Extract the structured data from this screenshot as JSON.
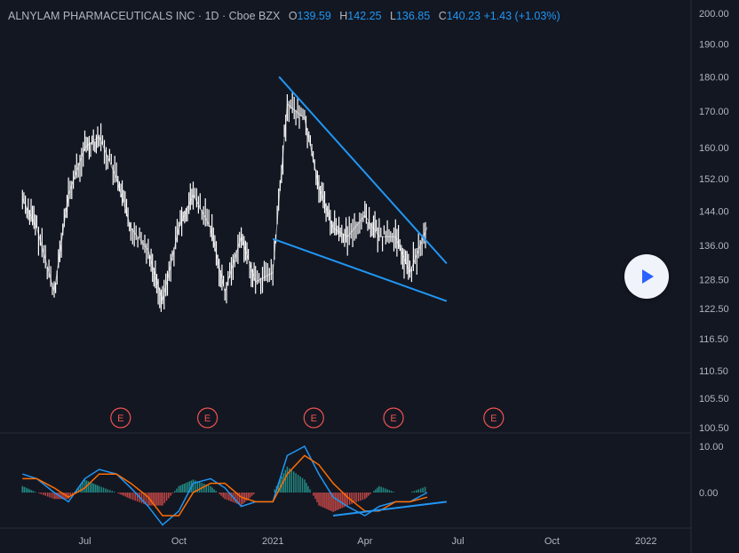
{
  "header": {
    "symbol": "ALNYLAM PHARMACEUTICALS INC · 1D · Cboe BZX",
    "open_label": "O",
    "open": "139.59",
    "high_label": "H",
    "high": "142.25",
    "low_label": "L",
    "low": "136.85",
    "close_label": "C",
    "close": "140.23",
    "change": "+1.43 (+1.03%)"
  },
  "colors": {
    "background": "#131722",
    "candle": "#ffffff",
    "trendline": "#2196f3",
    "macd": "#2196f3",
    "signal": "#ff6d00",
    "hist_up": "#26a69a",
    "hist_down": "#ef5350",
    "earnings": "#ef5350"
  },
  "icons": {
    "play": "play-icon"
  },
  "chart_data": [
    {
      "type": "candlestick",
      "title": "ALNYLAM PHARMACEUTICALS INC · 1D · Cboe BZX",
      "scale": "log",
      "y_ticks": [
        "200.00",
        "190.00",
        "180.00",
        "170.00",
        "160.00",
        "152.00",
        "144.00",
        "136.00",
        "128.50",
        "122.50",
        "116.50",
        "110.50",
        "105.50",
        "100.50"
      ],
      "x_ticks": [
        "Jul",
        "Oct",
        "2021",
        "Apr",
        "Jul",
        "Oct",
        "2022"
      ],
      "ylim": [
        100.5,
        200
      ],
      "earnings_markers": [
        "E",
        "E",
        "E",
        "E",
        "E"
      ],
      "series_close": [
        {
          "date": "2020-05-01",
          "close": 147
        },
        {
          "date": "2020-05-15",
          "close": 140
        },
        {
          "date": "2020-06-01",
          "close": 126
        },
        {
          "date": "2020-06-15",
          "close": 148
        },
        {
          "date": "2020-07-01",
          "close": 160
        },
        {
          "date": "2020-07-15",
          "close": 163
        },
        {
          "date": "2020-08-01",
          "close": 152
        },
        {
          "date": "2020-08-15",
          "close": 140
        },
        {
          "date": "2020-09-01",
          "close": 135
        },
        {
          "date": "2020-09-15",
          "close": 124
        },
        {
          "date": "2020-10-01",
          "close": 140
        },
        {
          "date": "2020-10-15",
          "close": 148
        },
        {
          "date": "2020-11-01",
          "close": 140
        },
        {
          "date": "2020-11-15",
          "close": 126
        },
        {
          "date": "2020-12-01",
          "close": 138
        },
        {
          "date": "2020-12-15",
          "close": 128
        },
        {
          "date": "2021-01-01",
          "close": 130
        },
        {
          "date": "2021-01-15",
          "close": 172
        },
        {
          "date": "2021-02-01",
          "close": 168
        },
        {
          "date": "2021-02-15",
          "close": 150
        },
        {
          "date": "2021-03-01",
          "close": 140
        },
        {
          "date": "2021-03-15",
          "close": 138
        },
        {
          "date": "2021-04-01",
          "close": 143
        },
        {
          "date": "2021-04-15",
          "close": 138
        },
        {
          "date": "2021-05-01",
          "close": 138
        },
        {
          "date": "2021-05-15",
          "close": 130
        },
        {
          "date": "2021-06-01",
          "close": 140.23
        }
      ],
      "trendlines": [
        {
          "from": {
            "date": "2021-01-07",
            "value": 180
          },
          "to": {
            "date": "2021-06-20",
            "value": 132
          }
        },
        {
          "from": {
            "date": "2021-01-01",
            "value": 137.5
          },
          "to": {
            "date": "2021-06-20",
            "value": 124
          }
        }
      ]
    },
    {
      "type": "line",
      "indicator": "MACD",
      "y_ticks": [
        "10.00",
        "0.00"
      ],
      "series": [
        {
          "values": [
            4,
            3,
            0,
            -2,
            3,
            5,
            4,
            1,
            -3,
            -7,
            -4,
            2,
            3,
            1,
            -3,
            -2,
            -2,
            8,
            10,
            4,
            -1,
            -3,
            -5,
            -3,
            -2,
            -2,
            0
          ]
        },
        {
          "values": [
            3,
            3,
            1,
            -1,
            1,
            4,
            4,
            2,
            -1,
            -5,
            -5,
            0,
            2,
            2,
            -1,
            -2,
            -2,
            4,
            8,
            6,
            2,
            -1,
            -4,
            -4,
            -2,
            -2,
            -1
          ]
        }
      ],
      "trendlines": [
        {
          "from": {
            "date": "2021-03-01",
            "value": -5
          },
          "to": {
            "date": "2021-06-20",
            "value": -2
          }
        }
      ]
    }
  ]
}
